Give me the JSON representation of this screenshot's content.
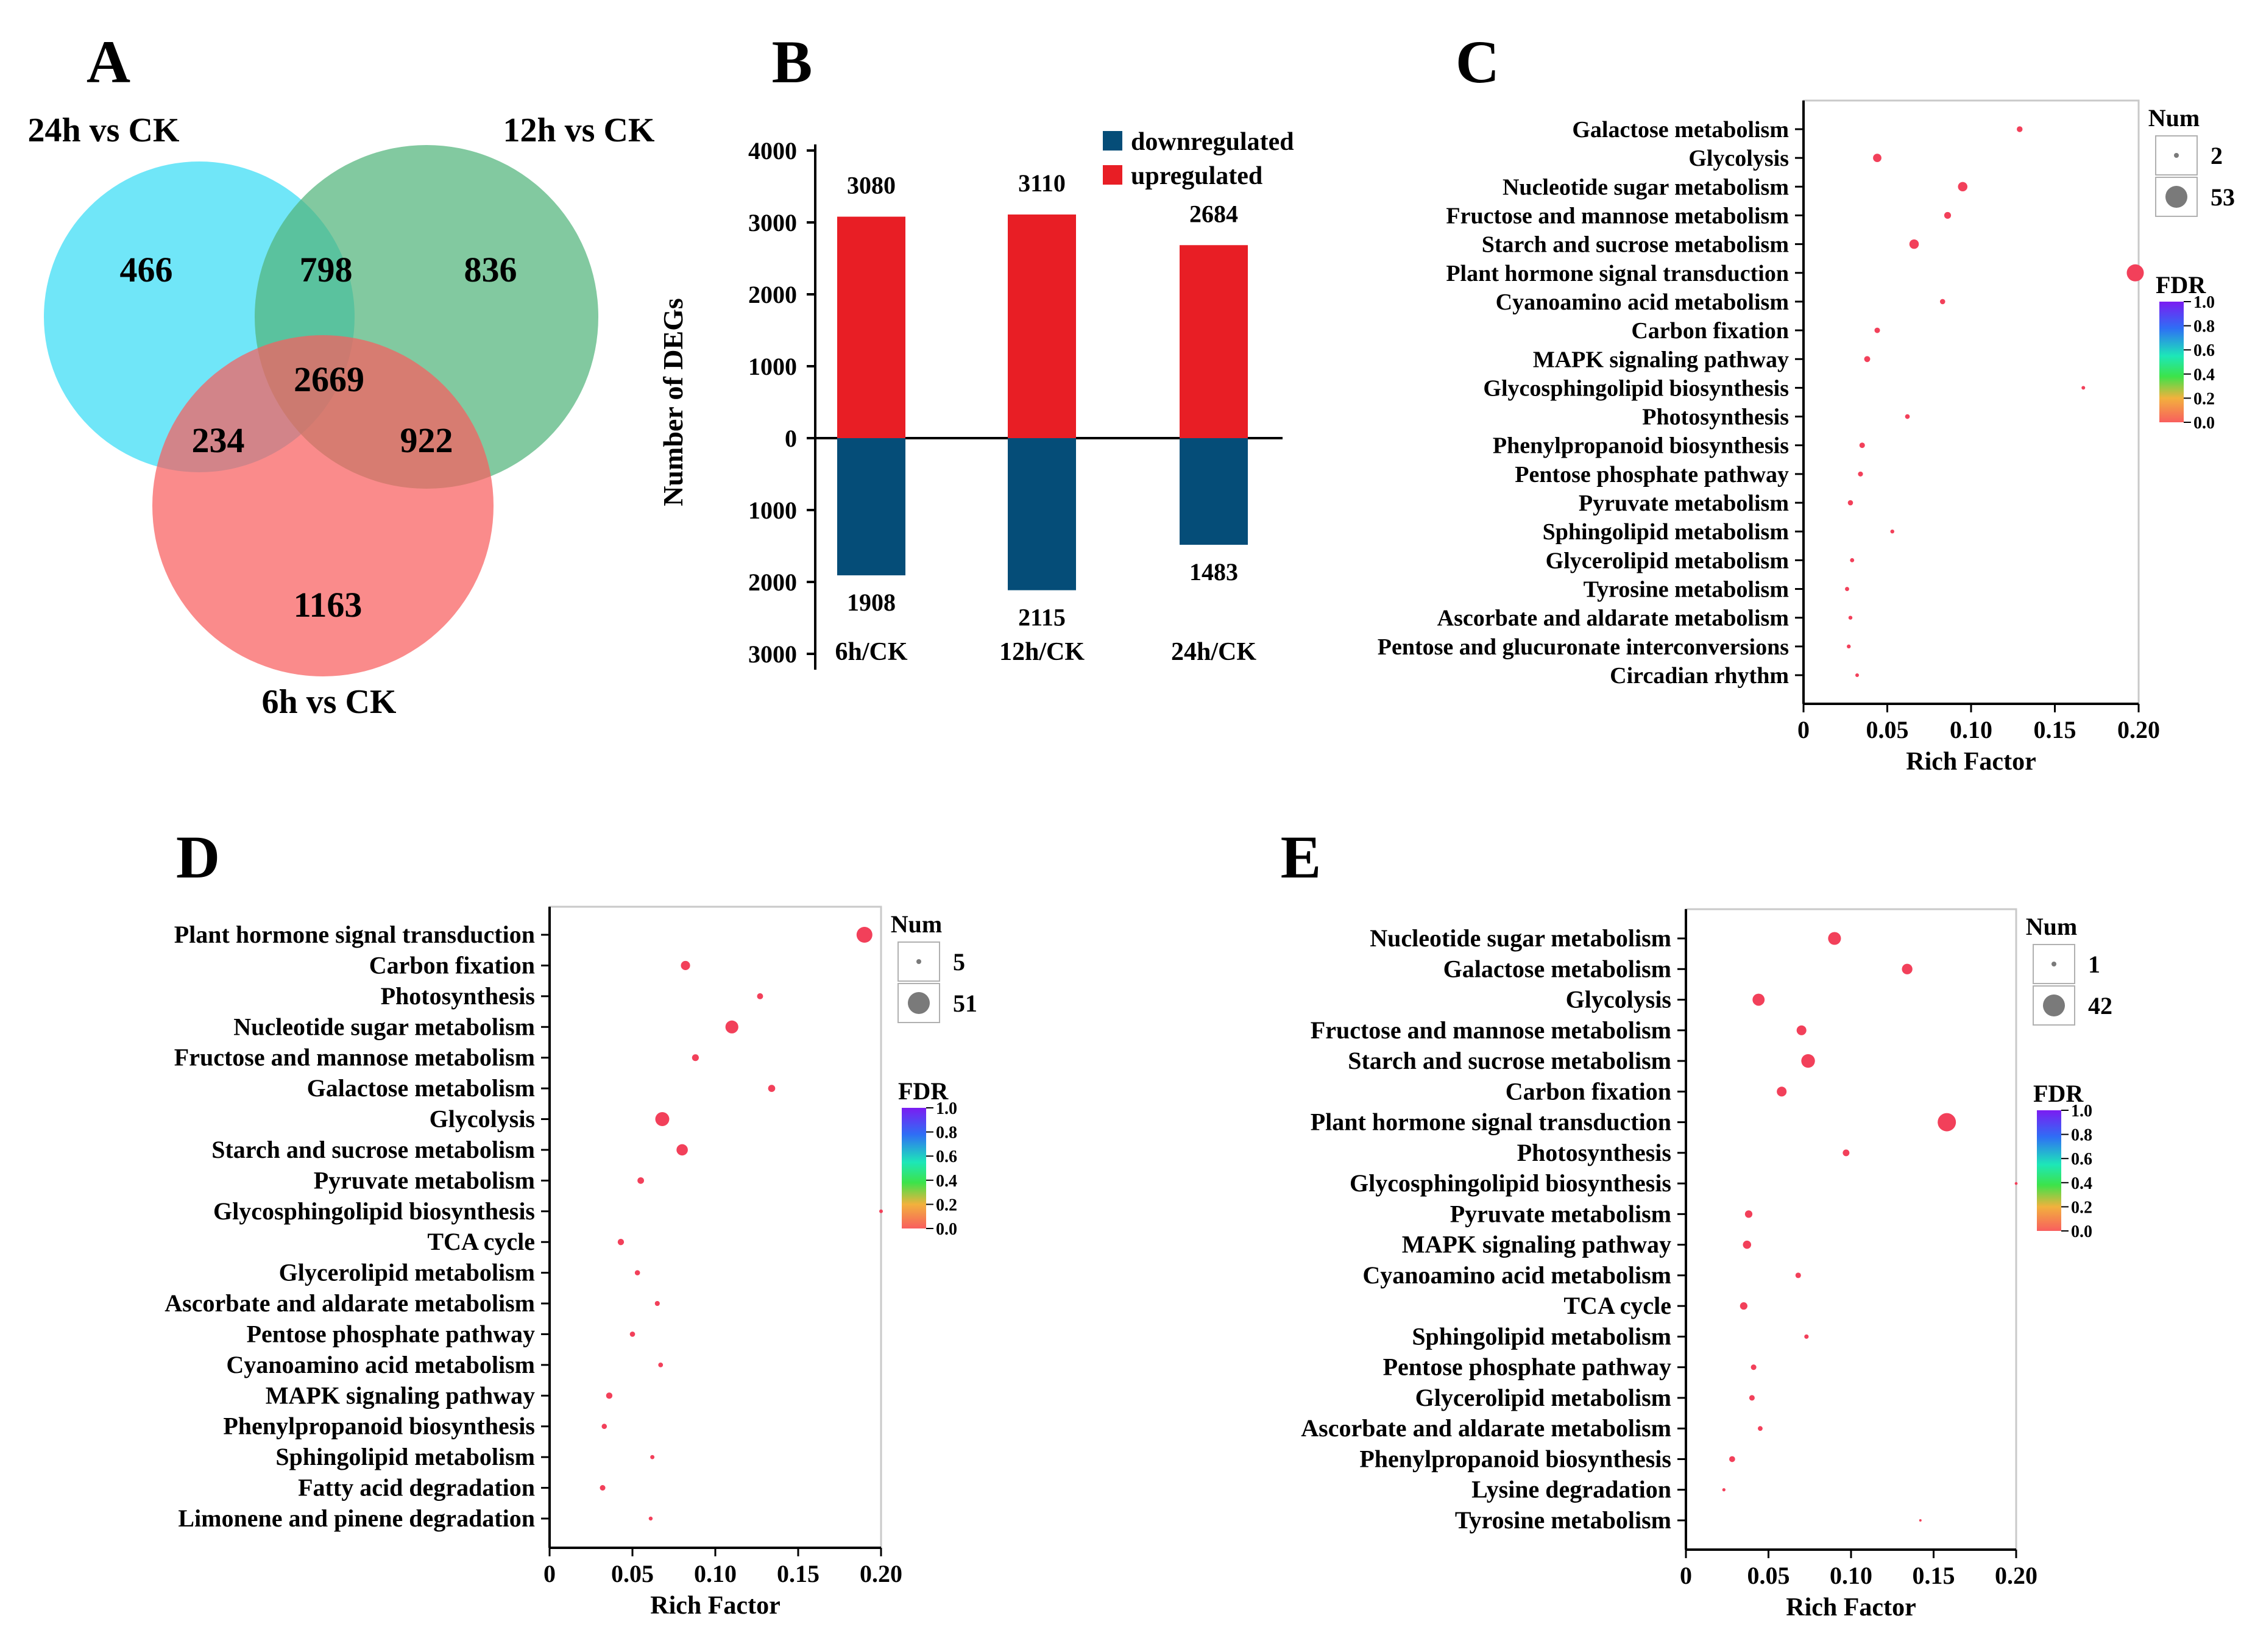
{
  "panels": {
    "A": {
      "letter": "A",
      "venn": {
        "sets": [
          {
            "label": "24h vs CK",
            "color": "#33dcf5"
          },
          {
            "label": "12h vs CK",
            "color": "#52b47c"
          },
          {
            "label": "6h vs CK",
            "color": "#f85e5e"
          }
        ],
        "regions": {
          "only_24h": "466",
          "only_12h": "836",
          "only_6h": "1163",
          "h24_h12": "798",
          "h24_h6": "234",
          "h12_h6": "922",
          "all": "2669"
        }
      }
    },
    "B": {
      "letter": "B",
      "chart_data": {
        "type": "bar",
        "ylabel": "Number of DEGs",
        "ylim": [
          -3000,
          4000
        ],
        "yticks": [
          {
            "v": 4000,
            "label": "4000"
          },
          {
            "v": 3000,
            "label": "3000"
          },
          {
            "v": 2000,
            "label": "2000"
          },
          {
            "v": 1000,
            "label": "1000"
          },
          {
            "v": 0,
            "label": "0"
          },
          {
            "v": -1000,
            "label": "1000"
          },
          {
            "v": -2000,
            "label": "2000"
          },
          {
            "v": -3000,
            "label": "3000"
          }
        ],
        "categories": [
          "6h/CK",
          "12h/CK",
          "24h/CK"
        ],
        "series": [
          {
            "name": "downregulated",
            "color": "#054d78",
            "values": [
              1908,
              2115,
              1483
            ]
          },
          {
            "name": "upregulated",
            "color": "#e81e25",
            "values": [
              3080,
              3110,
              2684
            ]
          }
        ]
      }
    },
    "C": {
      "letter": "C",
      "chart_data": {
        "type": "scatter",
        "xlabel": "Rich Factor",
        "xlim": [
          0,
          0.2
        ],
        "xticks": [
          "0",
          "0.05",
          "0.10",
          "0.15",
          "0.20"
        ],
        "size_legend": {
          "title": "Num",
          "min": 2,
          "max": 53,
          "labels": [
            "2",
            "53"
          ]
        },
        "color_legend": {
          "title": "FDR",
          "ticks": [
            "1.0",
            "0.8",
            "0.6",
            "0.4",
            "0.2",
            "0.0"
          ]
        },
        "pathways": [
          {
            "name": "Galactose metabolism",
            "rich": 0.129,
            "num": 10
          },
          {
            "name": "Glycolysis",
            "rich": 0.044,
            "num": 20
          },
          {
            "name": "Nucleotide sugar metabolism",
            "rich": 0.095,
            "num": 24
          },
          {
            "name": "Fructose and mannose metabolism",
            "rich": 0.086,
            "num": 14
          },
          {
            "name": "Starch and sucrose metabolism",
            "rich": 0.066,
            "num": 24
          },
          {
            "name": "Plant hormone signal transduction",
            "rich": 0.198,
            "num": 53
          },
          {
            "name": "Cyanoamino acid metabolism",
            "rich": 0.083,
            "num": 8
          },
          {
            "name": "Carbon fixation",
            "rich": 0.044,
            "num": 9
          },
          {
            "name": "MAPK signaling pathway",
            "rich": 0.038,
            "num": 11
          },
          {
            "name": "Glycosphingolipid biosynthesis",
            "rich": 0.167,
            "num": 2
          },
          {
            "name": "Photosynthesis",
            "rich": 0.062,
            "num": 6
          },
          {
            "name": "Phenylpropanoid biosynthesis",
            "rich": 0.035,
            "num": 9
          },
          {
            "name": "Pentose phosphate pathway",
            "rich": 0.034,
            "num": 7
          },
          {
            "name": "Pyruvate metabolism",
            "rich": 0.028,
            "num": 8
          },
          {
            "name": "Sphingolipid metabolism",
            "rich": 0.053,
            "num": 3
          },
          {
            "name": "Glycerolipid metabolism",
            "rich": 0.029,
            "num": 4
          },
          {
            "name": "Tyrosine metabolism",
            "rich": 0.026,
            "num": 4
          },
          {
            "name": "Ascorbate and aldarate metabolism",
            "rich": 0.028,
            "num": 3
          },
          {
            "name": "Pentose and glucuronate interconversions",
            "rich": 0.027,
            "num": 3
          },
          {
            "name": "Circadian rhythm",
            "rich": 0.032,
            "num": 2
          }
        ]
      }
    },
    "D": {
      "letter": "D",
      "chart_data": {
        "type": "scatter",
        "xlabel": "Rich Factor",
        "xlim": [
          0,
          0.2
        ],
        "xticks": [
          "0",
          "0.05",
          "0.10",
          "0.15",
          "0.20"
        ],
        "size_legend": {
          "title": "Num",
          "min": 5,
          "max": 51,
          "labels": [
            "5",
            "51"
          ]
        },
        "color_legend": {
          "title": "FDR",
          "ticks": [
            "1.0",
            "0.8",
            "0.6",
            "0.4",
            "0.2",
            "0.0"
          ]
        },
        "pathways": [
          {
            "name": "Plant hormone signal transduction",
            "rich": 0.19,
            "num": 51
          },
          {
            "name": "Carbon fixation",
            "rich": 0.082,
            "num": 26
          },
          {
            "name": "Photosynthesis",
            "rich": 0.127,
            "num": 14
          },
          {
            "name": "Nucleotide sugar metabolism",
            "rich": 0.11,
            "num": 40
          },
          {
            "name": "Fructose and mannose metabolism",
            "rich": 0.088,
            "num": 17
          },
          {
            "name": "Galactose metabolism",
            "rich": 0.134,
            "num": 18
          },
          {
            "name": "Glycolysis",
            "rich": 0.068,
            "num": 44
          },
          {
            "name": "Starch and sucrose metabolism",
            "rich": 0.08,
            "num": 34
          },
          {
            "name": "Pyruvate metabolism",
            "rich": 0.055,
            "num": 16
          },
          {
            "name": "Glycosphingolipid biosynthesis",
            "rich": 0.2,
            "num": 5
          },
          {
            "name": "TCA cycle",
            "rich": 0.043,
            "num": 15
          },
          {
            "name": "Glycerolipid metabolism",
            "rich": 0.053,
            "num": 11
          },
          {
            "name": "Ascorbate and aldarate metabolism",
            "rich": 0.065,
            "num": 10
          },
          {
            "name": "Pentose phosphate pathway",
            "rich": 0.05,
            "num": 11
          },
          {
            "name": "Cyanoamino acid metabolism",
            "rich": 0.067,
            "num": 9
          },
          {
            "name": "MAPK signaling pathway",
            "rich": 0.036,
            "num": 15
          },
          {
            "name": "Phenylpropanoid biosynthesis",
            "rich": 0.033,
            "num": 11
          },
          {
            "name": "Sphingolipid metabolism",
            "rich": 0.062,
            "num": 7
          },
          {
            "name": "Fatty acid degradation",
            "rich": 0.032,
            "num": 12
          },
          {
            "name": "Limonene and pinene degradation",
            "rich": 0.061,
            "num": 6
          }
        ]
      }
    },
    "E": {
      "letter": "E",
      "chart_data": {
        "type": "scatter",
        "xlabel": "Rich Factor",
        "xlim": [
          0,
          0.2
        ],
        "xticks": [
          "0",
          "0.05",
          "0.10",
          "0.15",
          "0.20"
        ],
        "size_legend": {
          "title": "Num",
          "min": 1,
          "max": 42,
          "labels": [
            "1",
            "42"
          ]
        },
        "color_legend": {
          "title": "FDR",
          "ticks": [
            "1.0",
            "0.8",
            "0.6",
            "0.4",
            "0.2",
            "0.0"
          ]
        },
        "pathways": [
          {
            "name": "Nucleotide sugar metabolism",
            "rich": 0.09,
            "num": 28
          },
          {
            "name": "Galactose metabolism",
            "rich": 0.134,
            "num": 22
          },
          {
            "name": "Glycolysis",
            "rich": 0.044,
            "num": 26
          },
          {
            "name": "Fructose and mannose metabolism",
            "rich": 0.07,
            "num": 20
          },
          {
            "name": "Starch and sucrose metabolism",
            "rich": 0.074,
            "num": 30
          },
          {
            "name": "Carbon fixation",
            "rich": 0.058,
            "num": 20
          },
          {
            "name": "Plant hormone signal transduction",
            "rich": 0.158,
            "num": 42
          },
          {
            "name": "Photosynthesis",
            "rich": 0.097,
            "num": 12
          },
          {
            "name": "Glycosphingolipid biosynthesis",
            "rich": 0.2,
            "num": 2
          },
          {
            "name": "Pyruvate metabolism",
            "rich": 0.038,
            "num": 14
          },
          {
            "name": "MAPK signaling pathway",
            "rich": 0.037,
            "num": 16
          },
          {
            "name": "Cyanoamino acid metabolism",
            "rich": 0.068,
            "num": 9
          },
          {
            "name": "TCA cycle",
            "rich": 0.035,
            "num": 14
          },
          {
            "name": "Sphingolipid metabolism",
            "rich": 0.073,
            "num": 6
          },
          {
            "name": "Pentose phosphate pathway",
            "rich": 0.041,
            "num": 9
          },
          {
            "name": "Glycerolipid metabolism",
            "rich": 0.04,
            "num": 9
          },
          {
            "name": "Ascorbate and aldarate metabolism",
            "rich": 0.045,
            "num": 7
          },
          {
            "name": "Phenylpropanoid biosynthesis",
            "rich": 0.028,
            "num": 10
          },
          {
            "name": "Lysine degradation",
            "rich": 0.023,
            "num": 3
          },
          {
            "name": "Tyrosine metabolism",
            "rich": 0.142,
            "num": 1
          }
        ]
      }
    }
  }
}
